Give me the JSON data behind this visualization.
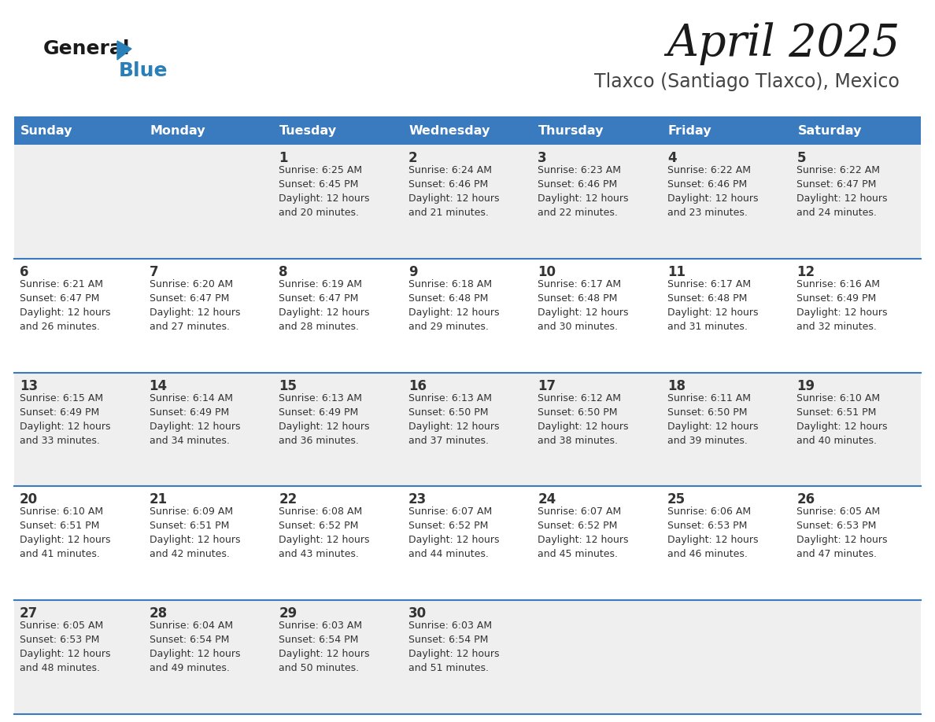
{
  "title": "April 2025",
  "subtitle": "Tlaxco (Santiago Tlaxco), Mexico",
  "header_bg": "#3a7abf",
  "header_text_color": "#ffffff",
  "weekdays": [
    "Sunday",
    "Monday",
    "Tuesday",
    "Wednesday",
    "Thursday",
    "Friday",
    "Saturday"
  ],
  "row_bg_gray": "#efefef",
  "row_bg_white": "#ffffff",
  "cell_text_color": "#333333",
  "divider_color": "#3a7abf",
  "calendar": [
    [
      {
        "day": "",
        "sunrise": "",
        "sunset": "",
        "daylight_min": null
      },
      {
        "day": "",
        "sunrise": "",
        "sunset": "",
        "daylight_min": null
      },
      {
        "day": "1",
        "sunrise": "6:25 AM",
        "sunset": "6:45 PM",
        "daylight_min": 20
      },
      {
        "day": "2",
        "sunrise": "6:24 AM",
        "sunset": "6:46 PM",
        "daylight_min": 21
      },
      {
        "day": "3",
        "sunrise": "6:23 AM",
        "sunset": "6:46 PM",
        "daylight_min": 22
      },
      {
        "day": "4",
        "sunrise": "6:22 AM",
        "sunset": "6:46 PM",
        "daylight_min": 23
      },
      {
        "day": "5",
        "sunrise": "6:22 AM",
        "sunset": "6:47 PM",
        "daylight_min": 24
      }
    ],
    [
      {
        "day": "6",
        "sunrise": "6:21 AM",
        "sunset": "6:47 PM",
        "daylight_min": 26
      },
      {
        "day": "7",
        "sunrise": "6:20 AM",
        "sunset": "6:47 PM",
        "daylight_min": 27
      },
      {
        "day": "8",
        "sunrise": "6:19 AM",
        "sunset": "6:47 PM",
        "daylight_min": 28
      },
      {
        "day": "9",
        "sunrise": "6:18 AM",
        "sunset": "6:48 PM",
        "daylight_min": 29
      },
      {
        "day": "10",
        "sunrise": "6:17 AM",
        "sunset": "6:48 PM",
        "daylight_min": 30
      },
      {
        "day": "11",
        "sunrise": "6:17 AM",
        "sunset": "6:48 PM",
        "daylight_min": 31
      },
      {
        "day": "12",
        "sunrise": "6:16 AM",
        "sunset": "6:49 PM",
        "daylight_min": 32
      }
    ],
    [
      {
        "day": "13",
        "sunrise": "6:15 AM",
        "sunset": "6:49 PM",
        "daylight_min": 33
      },
      {
        "day": "14",
        "sunrise": "6:14 AM",
        "sunset": "6:49 PM",
        "daylight_min": 34
      },
      {
        "day": "15",
        "sunrise": "6:13 AM",
        "sunset": "6:49 PM",
        "daylight_min": 36
      },
      {
        "day": "16",
        "sunrise": "6:13 AM",
        "sunset": "6:50 PM",
        "daylight_min": 37
      },
      {
        "day": "17",
        "sunrise": "6:12 AM",
        "sunset": "6:50 PM",
        "daylight_min": 38
      },
      {
        "day": "18",
        "sunrise": "6:11 AM",
        "sunset": "6:50 PM",
        "daylight_min": 39
      },
      {
        "day": "19",
        "sunrise": "6:10 AM",
        "sunset": "6:51 PM",
        "daylight_min": 40
      }
    ],
    [
      {
        "day": "20",
        "sunrise": "6:10 AM",
        "sunset": "6:51 PM",
        "daylight_min": 41
      },
      {
        "day": "21",
        "sunrise": "6:09 AM",
        "sunset": "6:51 PM",
        "daylight_min": 42
      },
      {
        "day": "22",
        "sunrise": "6:08 AM",
        "sunset": "6:52 PM",
        "daylight_min": 43
      },
      {
        "day": "23",
        "sunrise": "6:07 AM",
        "sunset": "6:52 PM",
        "daylight_min": 44
      },
      {
        "day": "24",
        "sunrise": "6:07 AM",
        "sunset": "6:52 PM",
        "daylight_min": 45
      },
      {
        "day": "25",
        "sunrise": "6:06 AM",
        "sunset": "6:53 PM",
        "daylight_min": 46
      },
      {
        "day": "26",
        "sunrise": "6:05 AM",
        "sunset": "6:53 PM",
        "daylight_min": 47
      }
    ],
    [
      {
        "day": "27",
        "sunrise": "6:05 AM",
        "sunset": "6:53 PM",
        "daylight_min": 48
      },
      {
        "day": "28",
        "sunrise": "6:04 AM",
        "sunset": "6:54 PM",
        "daylight_min": 49
      },
      {
        "day": "29",
        "sunrise": "6:03 AM",
        "sunset": "6:54 PM",
        "daylight_min": 50
      },
      {
        "day": "30",
        "sunrise": "6:03 AM",
        "sunset": "6:54 PM",
        "daylight_min": 51
      },
      {
        "day": "",
        "sunrise": "",
        "sunset": "",
        "daylight_min": null
      },
      {
        "day": "",
        "sunrise": "",
        "sunset": "",
        "daylight_min": null
      },
      {
        "day": "",
        "sunrise": "",
        "sunset": "",
        "daylight_min": null
      }
    ]
  ],
  "fig_width": 11.88,
  "fig_height": 9.18,
  "dpi": 100
}
